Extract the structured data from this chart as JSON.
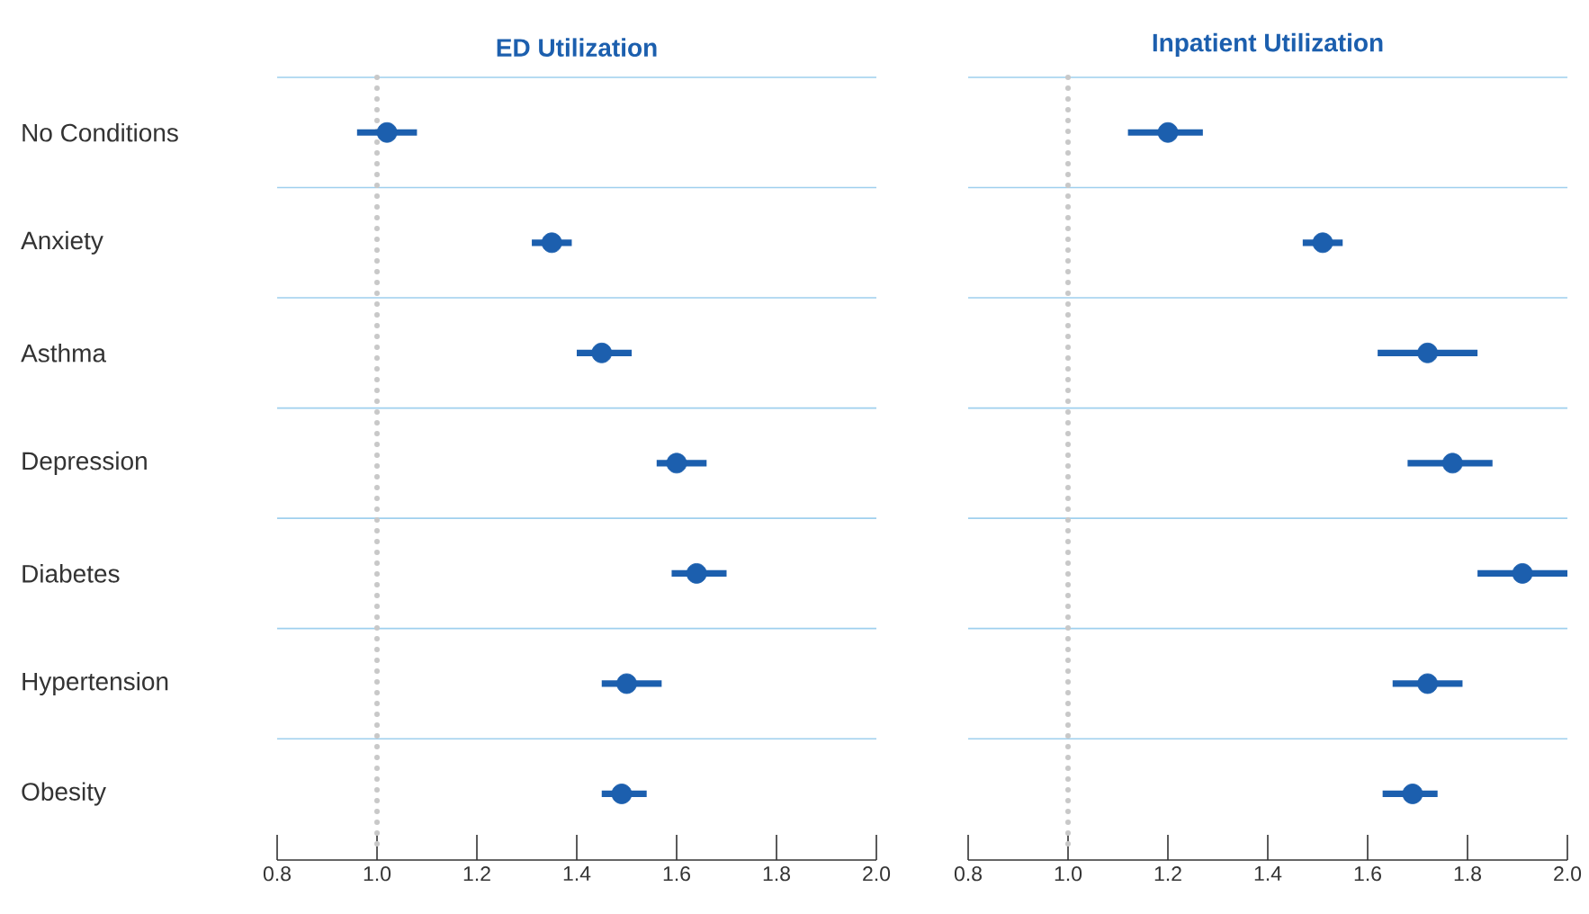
{
  "chart_data": [
    {
      "type": "scatter",
      "orientation": "horizontal",
      "title": "ED Utilization",
      "categories": [
        "No Conditions",
        "Anxiety",
        "Asthma",
        "Depression",
        "Diabetes",
        "Hypertension",
        "Obesity"
      ],
      "values": [
        1.02,
        1.35,
        1.45,
        1.6,
        1.64,
        1.5,
        1.49
      ],
      "errors": [
        [
          0.96,
          1.08
        ],
        [
          1.31,
          1.39
        ],
        [
          1.4,
          1.51
        ],
        [
          1.56,
          1.66
        ],
        [
          1.59,
          1.7
        ],
        [
          1.45,
          1.57
        ],
        [
          1.45,
          1.54
        ]
      ],
      "color": "#1c5fae",
      "marker": "circle",
      "grid": "y",
      "xlim": [
        0.8,
        2.0
      ],
      "xticks": [
        {
          "value": 0.8,
          "label": "0.8"
        },
        {
          "value": 1.0,
          "label": "1.0"
        },
        {
          "value": 1.2,
          "label": "1.2"
        },
        {
          "value": 1.4,
          "label": "1.4"
        },
        {
          "value": 1.6,
          "label": "1.6"
        },
        {
          "value": 1.8,
          "label": "1.8"
        },
        {
          "value": 2.0,
          "label": "2.0"
        }
      ],
      "ref_lines": [
        {
          "axis": "x",
          "value": 1,
          "color": "#c8c8c8",
          "line_style": "dotted"
        }
      ]
    },
    {
      "type": "scatter",
      "orientation": "horizontal",
      "title": "Inpatient Utilization",
      "categories": [
        null,
        null,
        null,
        null,
        null,
        null,
        null
      ],
      "values": [
        1.2,
        1.51,
        1.72,
        1.77,
        1.91,
        1.72,
        1.69
      ],
      "errors": [
        [
          1.12,
          1.27
        ],
        [
          1.47,
          1.55
        ],
        [
          1.62,
          1.82
        ],
        [
          1.68,
          1.85
        ],
        [
          1.82,
          2.0
        ],
        [
          1.65,
          1.79
        ],
        [
          1.63,
          1.74
        ]
      ],
      "color": "#1c5fae",
      "marker": "circle",
      "grid": "y",
      "xlim": [
        0.8,
        2.0
      ],
      "tick_labels": "x",
      "xticks": [
        {
          "value": 0.8,
          "label": "0.8"
        },
        {
          "value": 1.0,
          "label": "1.0"
        },
        {
          "value": 1.2,
          "label": "1.2"
        },
        {
          "value": 1.4,
          "label": "1.4"
        },
        {
          "value": 1.6,
          "label": "1.6"
        },
        {
          "value": 1.8,
          "label": "1.8"
        },
        {
          "value": 2.0,
          "label": "2.0"
        }
      ],
      "ref_lines": [
        {
          "axis": "x",
          "value": 1,
          "color": "#c8c8c8",
          "line_style": "dotted"
        }
      ]
    }
  ]
}
